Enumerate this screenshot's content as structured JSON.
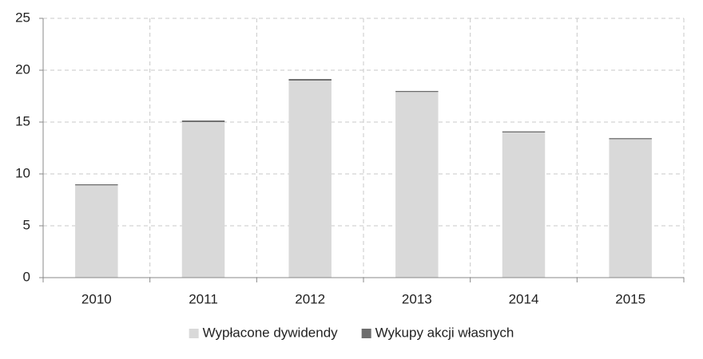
{
  "chart_data": {
    "type": "bar",
    "stacked": true,
    "categories": [
      "2010",
      "2011",
      "2012",
      "2013",
      "2014",
      "2015"
    ],
    "series": [
      {
        "name": "Wypłacone dywidendy",
        "color": "#d9d9d9",
        "values": [
          8.9,
          15.0,
          19.0,
          17.9,
          14.0,
          13.35
        ]
      },
      {
        "name": "Wykupy akcji własnych",
        "color": "#6d6d6d",
        "values": [
          0.1,
          0.15,
          0.15,
          0.1,
          0.1,
          0.1
        ]
      }
    ],
    "ylim": [
      0,
      25
    ],
    "yticks": [
      0,
      5,
      10,
      15,
      20,
      25
    ],
    "grid": true,
    "legend": "bottom"
  }
}
